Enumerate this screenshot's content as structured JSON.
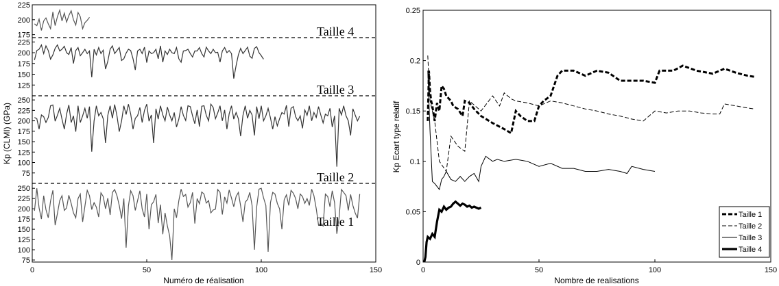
{
  "chart_data": [
    {
      "type": "line",
      "xlabel": "Numéro de réalisation",
      "ylabel": "Kp (CLMI) (GPa)",
      "xlim": [
        0,
        150
      ],
      "xticks": [
        "0",
        "50",
        "100",
        "150"
      ],
      "panels": [
        {
          "name": "Taille 4",
          "ylim": [
            170,
            225
          ],
          "yticks": [
            "225",
            "200",
            "175"
          ],
          "values": [
            193,
            190,
            201,
            182,
            198,
            203,
            193,
            185,
            213,
            190,
            205,
            216,
            198,
            211,
            196,
            207,
            215,
            200,
            191,
            212,
            205,
            185,
            195,
            199,
            204
          ]
        },
        {
          "name": "Taille 3",
          "ylim": [
            100,
            235
          ],
          "yticks": [
            "225",
            "200",
            "175",
            "150",
            "125"
          ],
          "values": [
            183,
            205,
            208,
            218,
            198,
            216,
            205,
            185,
            195,
            210,
            218,
            204,
            208,
            215,
            200,
            196,
            212,
            175,
            205,
            212,
            193,
            200,
            208,
            198,
            204,
            143,
            208,
            195,
            212,
            198,
            206,
            162,
            180,
            208,
            216,
            198,
            205,
            212,
            182,
            186,
            199,
            208,
            205,
            186,
            160,
            204,
            208,
            198,
            213,
            177,
            204,
            198,
            200,
            208,
            186,
            216,
            178,
            204,
            196,
            208,
            200,
            198,
            212,
            186,
            178,
            204,
            205,
            208,
            198,
            190,
            204,
            204,
            212,
            198,
            190,
            213,
            204,
            198,
            208,
            200,
            201,
            178,
            204,
            212,
            200,
            205,
            198,
            140,
            170,
            195,
            210,
            198,
            205,
            213,
            192,
            187,
            210,
            214,
            200,
            193,
            185
          ]
        },
        {
          "name": "Taille 2",
          "ylim": [
            50,
            260
          ],
          "yticks": [
            "250",
            "225",
            "200",
            "175",
            "150",
            "125",
            "100",
            "75"
          ],
          "values": [
            208,
            205,
            180,
            214,
            210,
            196,
            208,
            236,
            238,
            199,
            213,
            230,
            204,
            180,
            216,
            238,
            196,
            212,
            174,
            236,
            196,
            212,
            230,
            206,
            234,
            126,
            200,
            236,
            212,
            220,
            205,
            147,
            213,
            236,
            206,
            239,
            212,
            174,
            200,
            236,
            215,
            240,
            216,
            180,
            206,
            212,
            232,
            196,
            225,
            240,
            199,
            214,
            147,
            229,
            204,
            236,
            214,
            200,
            233,
            214,
            200,
            220,
            185,
            204,
            234,
            213,
            201,
            236,
            234,
            212,
            193,
            226,
            186,
            235,
            236,
            213,
            200,
            240,
            232,
            205,
            219,
            236,
            200,
            226,
            180,
            217,
            236,
            204,
            220,
            205,
            163,
            213,
            236,
            206,
            225,
            214,
            165,
            234,
            205,
            236,
            200,
            212,
            230,
            207,
            180,
            210,
            188,
            205,
            220,
            216,
            237,
            186,
            230,
            234,
            210,
            200,
            212,
            182,
            226,
            213,
            236,
            200,
            220,
            208,
            234,
            214,
            195,
            216,
            212,
            230,
            185,
            212,
            90,
            230,
            214,
            236,
            212,
            200,
            165,
            229,
            214,
            200,
            211
          ]
        },
        {
          "name": "Taille 1",
          "ylim": [
            70,
            262
          ],
          "yticks": [
            "250",
            "225",
            "200",
            "175",
            "150",
            "125",
            "100",
            "75"
          ],
          "values": [
            195,
            250,
            202,
            175,
            232,
            198,
            178,
            219,
            245,
            160,
            188,
            220,
            232,
            196,
            202,
            233,
            213,
            190,
            178,
            225,
            236,
            168,
            206,
            245,
            232,
            198,
            215,
            204,
            180,
            239,
            230,
            200,
            226,
            185,
            240,
            247,
            232,
            208,
            176,
            225,
            105,
            207,
            244,
            232,
            196,
            220,
            244,
            200,
            180,
            236,
            150,
            210,
            217,
            235,
            165,
            210,
            138,
            190,
            158,
            134,
            75,
            200,
            178,
            220,
            248,
            230,
            235,
            204,
            215,
            240,
            164,
            225,
            212,
            241,
            236,
            214,
            220,
            190,
            197,
            199,
            247,
            240,
            186,
            229,
            214,
            246,
            226,
            205,
            230,
            240,
            207,
            168,
            216,
            223,
            240,
            208,
            100,
            204,
            248,
            250,
            227,
            208,
            95,
            215,
            240,
            236,
            213,
            200,
            150,
            222,
            234,
            208,
            245,
            238,
            225,
            200,
            236,
            230,
            213,
            225,
            208,
            248,
            232,
            200,
            160,
            164,
            158,
            236,
            230,
            205,
            244,
            215,
            139,
            180,
            247,
            240,
            232,
            196,
            235,
            208,
            190,
            177,
            236
          ]
        }
      ]
    },
    {
      "type": "line",
      "xlabel": "Nombre de realisations",
      "ylabel": "Kp Ecart type relatif",
      "xlim": [
        0,
        150
      ],
      "ylim": [
        0,
        0.25
      ],
      "xticks": [
        "0",
        "50",
        "100",
        "150"
      ],
      "yticks": [
        "0",
        "0.05",
        "0.1",
        "0.15",
        "0.2",
        "0.25"
      ],
      "series": [
        {
          "name": "Taille 1",
          "points": [
            [
              2,
              0.14
            ],
            [
              2.5,
              0.19
            ],
            [
              3,
              0.17
            ],
            [
              3.5,
              0.16
            ],
            [
              4,
              0.155
            ],
            [
              5,
              0.14
            ],
            [
              6,
              0.158
            ],
            [
              7,
              0.15
            ],
            [
              8,
              0.175
            ],
            [
              9,
              0.172
            ],
            [
              10,
              0.165
            ],
            [
              12,
              0.16
            ],
            [
              13,
              0.155
            ],
            [
              15,
              0.152
            ],
            [
              17,
              0.145
            ],
            [
              18,
              0.16
            ],
            [
              20,
              0.158
            ],
            [
              22,
              0.152
            ],
            [
              25,
              0.145
            ],
            [
              30,
              0.138
            ],
            [
              35,
              0.132
            ],
            [
              38,
              0.128
            ],
            [
              40,
              0.15
            ],
            [
              42,
              0.145
            ],
            [
              45,
              0.14
            ],
            [
              48,
              0.14
            ],
            [
              50,
              0.155
            ],
            [
              52,
              0.16
            ],
            [
              55,
              0.165
            ],
            [
              58,
              0.185
            ],
            [
              60,
              0.19
            ],
            [
              65,
              0.19
            ],
            [
              70,
              0.185
            ],
            [
              75,
              0.19
            ],
            [
              80,
              0.188
            ],
            [
              85,
              0.18
            ],
            [
              90,
              0.18
            ],
            [
              95,
              0.18
            ],
            [
              100,
              0.178
            ],
            [
              102,
              0.19
            ],
            [
              108,
              0.19
            ],
            [
              112,
              0.195
            ],
            [
              118,
              0.19
            ],
            [
              125,
              0.187
            ],
            [
              130,
              0.192
            ],
            [
              135,
              0.188
            ],
            [
              140,
              0.185
            ],
            [
              143,
              0.184
            ]
          ]
        },
        {
          "name": "Taille 2",
          "points": [
            [
              2,
              0.205
            ],
            [
              3,
              0.16
            ],
            [
              4,
              0.15
            ],
            [
              5,
              0.14
            ],
            [
              6,
              0.12
            ],
            [
              7,
              0.1
            ],
            [
              10,
              0.09
            ],
            [
              12,
              0.125
            ],
            [
              15,
              0.115
            ],
            [
              18,
              0.11
            ],
            [
              20,
              0.16
            ],
            [
              25,
              0.15
            ],
            [
              30,
              0.165
            ],
            [
              33,
              0.155
            ],
            [
              35,
              0.168
            ],
            [
              38,
              0.162
            ],
            [
              40,
              0.16
            ],
            [
              45,
              0.158
            ],
            [
              50,
              0.155
            ],
            [
              55,
              0.16
            ],
            [
              60,
              0.158
            ],
            [
              65,
              0.155
            ],
            [
              70,
              0.152
            ],
            [
              75,
              0.15
            ],
            [
              80,
              0.147
            ],
            [
              85,
              0.145
            ],
            [
              90,
              0.142
            ],
            [
              95,
              0.14
            ],
            [
              100,
              0.15
            ],
            [
              105,
              0.148
            ],
            [
              110,
              0.15
            ],
            [
              115,
              0.15
            ],
            [
              120,
              0.148
            ],
            [
              125,
              0.147
            ],
            [
              128,
              0.147
            ],
            [
              130,
              0.157
            ],
            [
              135,
              0.155
            ],
            [
              140,
              0.153
            ],
            [
              143,
              0.152
            ]
          ]
        },
        {
          "name": "Taille 3",
          "points": [
            [
              2,
              0.19
            ],
            [
              3,
              0.13
            ],
            [
              4,
              0.08
            ],
            [
              5,
              0.078
            ],
            [
              6,
              0.075
            ],
            [
              7,
              0.072
            ],
            [
              8,
              0.082
            ],
            [
              9,
              0.085
            ],
            [
              10,
              0.09
            ],
            [
              12,
              0.082
            ],
            [
              14,
              0.08
            ],
            [
              16,
              0.085
            ],
            [
              18,
              0.08
            ],
            [
              20,
              0.085
            ],
            [
              22,
              0.088
            ],
            [
              24,
              0.08
            ],
            [
              25,
              0.095
            ],
            [
              27,
              0.105
            ],
            [
              30,
              0.1
            ],
            [
              32,
              0.102
            ],
            [
              35,
              0.1
            ],
            [
              40,
              0.102
            ],
            [
              45,
              0.1
            ],
            [
              50,
              0.095
            ],
            [
              55,
              0.098
            ],
            [
              60,
              0.093
            ],
            [
              65,
              0.093
            ],
            [
              70,
              0.09
            ],
            [
              75,
              0.09
            ],
            [
              80,
              0.092
            ],
            [
              85,
              0.09
            ],
            [
              88,
              0.088
            ],
            [
              90,
              0.095
            ],
            [
              95,
              0.092
            ],
            [
              100,
              0.09
            ]
          ]
        },
        {
          "name": "Taille 4",
          "points": [
            [
              0.5,
              0.0
            ],
            [
              1,
              0.005
            ],
            [
              1.5,
              0.02
            ],
            [
              2,
              0.025
            ],
            [
              3,
              0.023
            ],
            [
              4,
              0.028
            ],
            [
              5,
              0.025
            ],
            [
              6,
              0.04
            ],
            [
              7,
              0.052
            ],
            [
              8,
              0.05
            ],
            [
              9,
              0.055
            ],
            [
              10,
              0.052
            ],
            [
              11,
              0.054
            ],
            [
              12,
              0.055
            ],
            [
              13,
              0.058
            ],
            [
              14,
              0.06
            ],
            [
              15,
              0.058
            ],
            [
              16,
              0.056
            ],
            [
              17,
              0.058
            ],
            [
              18,
              0.057
            ],
            [
              19,
              0.055
            ],
            [
              20,
              0.056
            ],
            [
              21,
              0.054
            ],
            [
              22,
              0.055
            ],
            [
              23,
              0.054
            ],
            [
              24,
              0.053
            ],
            [
              25,
              0.054
            ]
          ]
        }
      ],
      "legend": "bottom-right"
    }
  ]
}
